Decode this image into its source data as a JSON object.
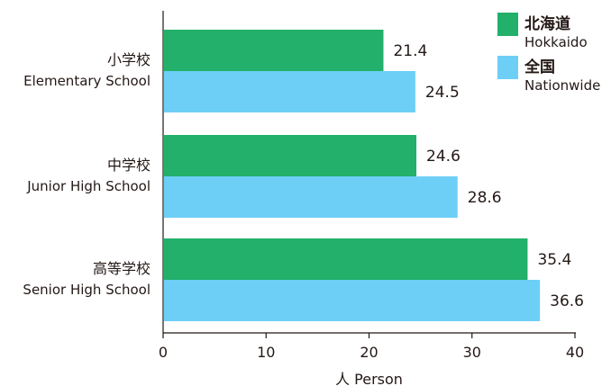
{
  "chart_data": {
    "type": "bar",
    "orientation": "horizontal",
    "categories": [
      {
        "ja": "小学校",
        "en": "Elementary School"
      },
      {
        "ja": "中学校",
        "en": "Junior High School"
      },
      {
        "ja": "高等学校",
        "en": "Senior High School"
      }
    ],
    "series": [
      {
        "name_ja": "北海道",
        "name_en": "Hokkaido",
        "color": "#22b06a",
        "values": [
          21.4,
          24.6,
          35.4
        ]
      },
      {
        "name_ja": "全国",
        "name_en": "Nationwide",
        "color": "#6dcff6",
        "values": [
          24.5,
          28.6,
          36.6
        ]
      }
    ],
    "xlabel": "人 Person",
    "xlim": [
      0,
      40
    ],
    "xticks": [
      0,
      10,
      20,
      30,
      40
    ],
    "legend_position": "top-right",
    "grid": false
  }
}
